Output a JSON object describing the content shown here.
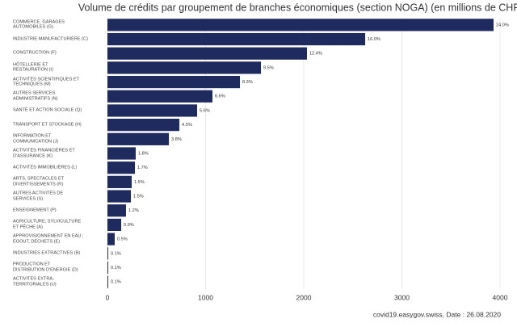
{
  "chart_data": {
    "type": "barh",
    "title": "Volume de crédits par groupement de branches économiques (section NOGA) (en millions de CHF)",
    "caption": "covid19.easygov.swiss, Date : 26.08.2020",
    "categories": [
      "COMMERCE, GARAGES\nAUTOMOBILES (G)",
      "INDUSTRIE MANUFACTURIÈRE (C)",
      "CONSTRUCTION (F)",
      "HÔTELLERIE ET\nRESTAURATION (I)",
      "ACTIVITÉS SCIENTIFIQUES ET\nTECHNIQUES (M)",
      "AUTRES SERVICES\nADMINISTRATIFS (N)",
      "SANTÉ ET ACTION SOCIALE (Q)",
      "TRANSPORT ET STOCKAGE (H)",
      "INFORMATION ET\nCOMMUNICATION (J)",
      "ACTIVITÉS FINANCIÈRES ET\nD'ASSURANCE (K)",
      "ACTIVITÉS IMMOBILIÈRES (L)",
      "ARTS, SPECTACLES ET\nDIVERTISSEMENTS (R)",
      "AUTRES ACTIVITÉS DE\nSERVICES (S)",
      "ENSEIGNEMENT (P)",
      "AGRICULTURE, SYLVICULTURE\nET PÊCHE (A)",
      "APPROVISIONNEMENT EN EAU ;\nÉGOUT, DÉCHETS (E)",
      "INDUSTRIES EXTRACTIVES (B)",
      "PRODUCTION ET\nDISTRIBUTION D'ÉNERGIE (D)",
      "ACTIVITÉS EXTRA-\nTERRITORIALES (U)"
    ],
    "values": [
      3934,
      2626,
      2033,
      1564,
      1350,
      1070,
      914,
      733,
      626,
      288,
      280,
      247,
      239,
      189,
      140,
      74,
      8,
      8,
      8
    ],
    "share_labels": [
      "24.0%",
      "16.0%",
      "12.4%",
      "9.5%",
      "8.3%",
      "6.6%",
      "5.6%",
      "4.5%",
      "3.8%",
      "1.8%",
      "1.7%",
      "1.5%",
      "1.5%",
      "1.2%",
      "0.9%",
      "0.5%",
      "0.1%",
      "0.1%",
      "0.1%"
    ],
    "color": "#1f2b5e",
    "xlim": [
      0,
      4000
    ],
    "xticks": [
      0,
      1000,
      2000,
      3000,
      4000
    ],
    "grid": true
  }
}
